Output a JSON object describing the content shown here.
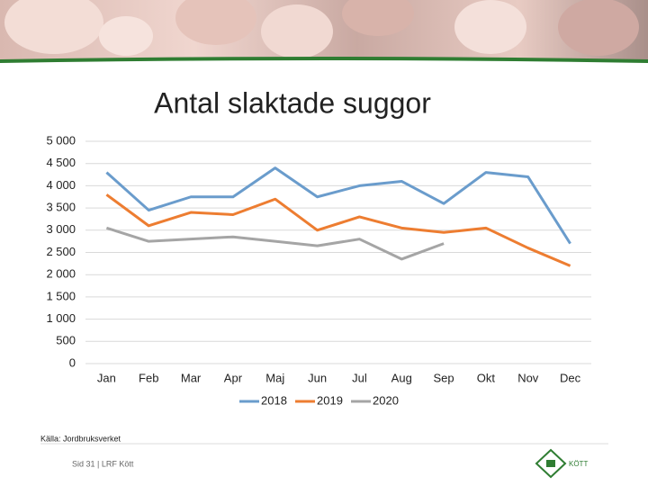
{
  "chart_data": {
    "type": "line",
    "title": "Antal slaktade suggor",
    "categories": [
      "Jan",
      "Feb",
      "Mar",
      "Apr",
      "Maj",
      "Jun",
      "Jul",
      "Aug",
      "Sep",
      "Okt",
      "Nov",
      "Dec"
    ],
    "series": [
      {
        "name": "2018",
        "color": "#6a9ccc",
        "values": [
          4300,
          3450,
          3750,
          3750,
          4400,
          3750,
          4000,
          4100,
          3600,
          4300,
          4200,
          2700
        ]
      },
      {
        "name": "2019",
        "color": "#ed7d31",
        "values": [
          3800,
          3100,
          3400,
          3350,
          3700,
          3000,
          3300,
          3050,
          2950,
          3050,
          2600,
          2200
        ]
      },
      {
        "name": "2020",
        "color": "#a5a5a5",
        "values": [
          3050,
          2750,
          2800,
          2850,
          2750,
          2650,
          2800,
          2350,
          2700,
          null,
          null,
          null
        ]
      }
    ],
    "ylim": [
      0,
      5000
    ],
    "yticks": [
      0,
      500,
      {
        "value": 1000,
        "label": "1 000"
      },
      {
        "value": 1500,
        "label": "1 500"
      },
      {
        "value": 2000,
        "label": "2 000"
      },
      {
        "value": 2500,
        "label": "2 500"
      },
      {
        "value": 3000,
        "label": "3 000"
      },
      {
        "value": 3500,
        "label": "3 500"
      },
      {
        "value": 4000,
        "label": "4 000"
      },
      {
        "value": 4500,
        "label": "4 500"
      },
      {
        "value": 5000,
        "label": "5 000"
      }
    ],
    "grid": true,
    "legend": "bottom"
  },
  "source": "Källa: Jordbruksverket",
  "footer": "Sid 31 | LRF Kött",
  "logo": "KÖTT"
}
